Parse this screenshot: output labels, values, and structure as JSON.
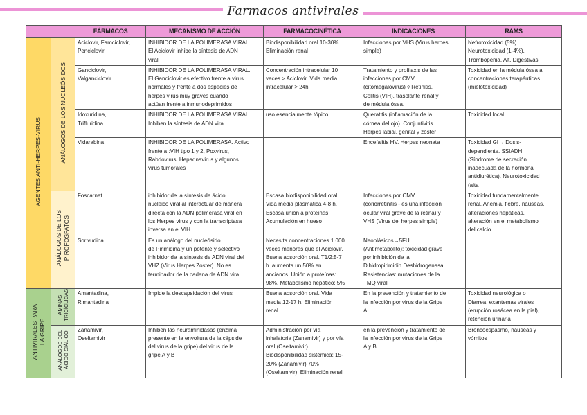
{
  "title": "Farmacos antivirales",
  "colors": {
    "header": "#ee9ad8",
    "herpes_group": "#fed966",
    "herpes_sub": "#ffe599",
    "herpes_sub2": "#fff2cc",
    "flu_group": "#a9d18e",
    "flu_sub": "#c5e0b4",
    "flu_sub2": "#e2f0d9",
    "title_lines": "#ec94d6"
  },
  "headers": [
    "FÁRMACOS",
    "MECANISMO DE ACCIÓN",
    "FARMACOCINÉTICA",
    "INDICACIONES",
    "RAMS"
  ],
  "groups": {
    "herpes": "AGENTES ANTI-HERPES-VIRUS",
    "nucleosidos": "ANÁLOGOS DE LOS NUCLEÓSIDOS",
    "pirofosfatos": "ANÁLOGOS DE LOS\nPIROFOSFATOS",
    "gripe": "ANTIVIRALES PARA\nLA GRIPE",
    "aminas": "AMINAS\nTRICÍCLICAS",
    "siálico": "ANÁLOGOS DEL\nÁCIDO SIÁLICO"
  },
  "rows": [
    {
      "farmacos": "Aciclovir, Famciclovir,\nPenciclovir",
      "mecanismo": "INHIBIDOR DE LA POLIMERASA VIRAL.\nEl Aciclovir inhibe la síntesis de ADN\nviral",
      "farmacocinetica": "Biodisponibilidad oral 10-30%.\nEliminación renal",
      "indicaciones": "Infecciones por VHS (Virus herpes\nsimple)",
      "rams": "Nefrotoxicidad (5%).\nNeurotoxicidad (1-4%).\nTrombopenia. Alt. Digestivas"
    },
    {
      "farmacos": "Ganciclovir,\nValganciclovir",
      "mecanismo": "INHIBIDOR DE LA POLIMERASA VIRAL.\nEl Ganciclovir es efectivo frente a virus\nnormales y frente a dos especies de\nherpes virus muy graves cuando\nactúan frente a inmunodeprimidos",
      "farmacocinetica": "Concentración intracelular 10\nveces > Aciclovir.  Vida media\nintracelular > 24h",
      "indicaciones": "Tratamiento y profilaxis de las\ninfecciones por CMV\n(citomegalovirus) ◊ Retinitis,\nColitis (VIH), trasplante renal y\nde médula ósea.",
      "rams": "Toxicidad en la médula ósea a\nconcentraciones terapéuticas\n(mielotoxicidad)"
    },
    {
      "farmacos": "Idoxuridina,\nTrifluridina",
      "mecanismo": "INHIBIDOR DE LA POLIMERASA VIRAL.\nInhiben la síntesis de ADN vira",
      "farmacocinetica": "uso esencialmente tópico",
      "indicaciones": "Queratitis (inflamación de la\ncórnea del ojo). Conjuntivitis.\nHerpes labial, genital y zóster",
      "rams": "Toxicidad local"
    },
    {
      "farmacos": "Vidarabina",
      "mecanismo": "INHIBIDOR DE LA POLIMERASA. Activo\nfrente a :VIH tipo 1 y 2, Poxvirus,\nRabdovirus, Hepadnavirus y algunos\nvirus tumorales",
      "farmacocinetica": "",
      "indicaciones": "Encefalitis HV. Herpes neonata",
      "rams": "Toxicidad GI→ Dosis-\ndependiente. SSIADH\n(Síndrome de secreción\ninadecuada de la hormona\nantidiurética). Neurotoxicidad\n(alta"
    },
    {
      "farmacos": "Foscarnet",
      "mecanismo": "inhibidor de la síntesis de ácido\nnucleico viral al interactuar de manera\ndirecta con la ADN polimerasa viral en\nlos Herpes virus y con la transcriptasa\ninversa en el VIH.",
      "farmacocinetica": "Escasa biodisponibilidad oral.\nVida media plasmática 4-8 h.\nEscasa unión a proteínas.\nAcumulación en hueso",
      "indicaciones": "Infecciones por CMV\n(coriorretinitis - es una infección\nocular viral grave de la retina) y\nVHS (Virus del herpes simple)",
      "rams": "Toxicidad fundamentalmente\nrenal. Anemia, fiebre, náuseas,\nalteraciones hepáticas,\nalteración en el metabolismo\ndel calcio"
    },
    {
      "farmacos": "Sorivudina",
      "mecanismo": "            Es un análogo del nucleósido\nde Pirimidina y un potente y selectivo\ninhibidor de la síntesis de ADN viral del\nVHZ (Virus Herpes Zoster). No es\nterminador de la cadena de ADN vira",
      "farmacocinetica": "Necesita concentraciones 1.000\nveces menores que el Aciclovir.\nBuena absorción oral. T1/2:5-7\nh. aumenta un 50% en\nancianos. Unión a proteínas:\n98%. Metabolismo hepático: 5%",
      "indicaciones": "Neoplásicos→5FU\n(Antimetabolito): toxicidad grave\npor inhibición de la\nDihidropirimidin Deshidrogenasa\nResistencias: mutaciones de la\nTMQ viral",
      "rams": ""
    },
    {
      "farmacos": "Amantadina,\nRimantadina",
      "mecanismo": "Impide la descapsidación del virus",
      "farmacocinetica": "Buena absorción oral. Vida\nmedia 12-17  h. Eliminación\nrenal",
      "indicaciones": "En la prevención y tratamiento de\nla infección por virus de la Gripe\nA",
      "rams": "Toxicidad neurológica o\nDiarrea, exantemas virales\n(erupción rosácea en la piel),\nretención urinaria"
    },
    {
      "farmacos": "Zanamivir,\nOseltamivir",
      "mecanismo": "Inhiben las neuraminidasas (enzima\npresente en la envoltura de la cápside\ndel virus de la gripe) del virus de la\ngripe A y B",
      "farmacocinetica": "Administración por vía\ninhalatoria (Zanamivir) y por vía\noral (Oseltamivir).\nBiodisponibilidad sistémica: 15-\n20% (Zanamivir) 70%\n(Oseltamivir). Eliminación renal",
      "indicaciones": "en la prevención y tratamiento de\nla infección por virus de la Gripe\nA y B",
      "rams": "Broncoespasmo, náuseas y\nvómitos"
    }
  ]
}
